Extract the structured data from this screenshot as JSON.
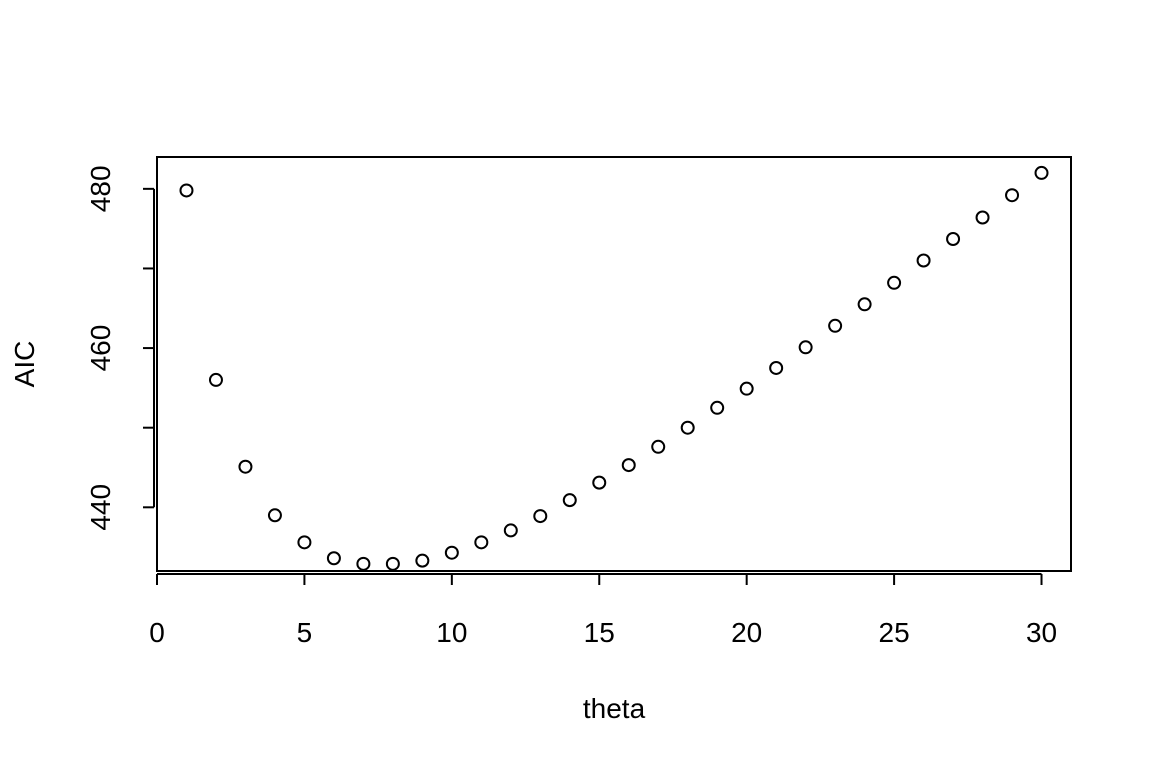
{
  "chart_data": {
    "type": "scatter",
    "title": "",
    "xlabel": "theta",
    "ylabel": "AIC",
    "xlim": [
      0,
      31
    ],
    "ylim": [
      432,
      484
    ],
    "xticks": [
      0,
      5,
      10,
      15,
      20,
      25,
      30
    ],
    "yticks": [
      440,
      450,
      460,
      470,
      480
    ],
    "ytick_labels": [
      "440",
      "",
      "460",
      "",
      "480"
    ],
    "grid": false,
    "legend": "none",
    "marker": "open-circle",
    "marker_color": "#000000",
    "x": [
      1,
      2,
      3,
      4,
      5,
      6,
      7,
      8,
      9,
      10,
      11,
      12,
      13,
      14,
      15,
      16,
      17,
      18,
      19,
      20,
      21,
      22,
      23,
      24,
      25,
      26,
      27,
      28,
      29,
      30
    ],
    "y": [
      479.8,
      456.0,
      445.1,
      439.0,
      435.6,
      433.6,
      432.9,
      432.9,
      433.3,
      434.3,
      435.6,
      437.1,
      438.9,
      440.9,
      443.1,
      445.3,
      447.6,
      450.0,
      452.5,
      454.9,
      457.5,
      460.1,
      462.8,
      465.5,
      468.2,
      471.0,
      473.7,
      476.4,
      479.2,
      482.0
    ]
  }
}
